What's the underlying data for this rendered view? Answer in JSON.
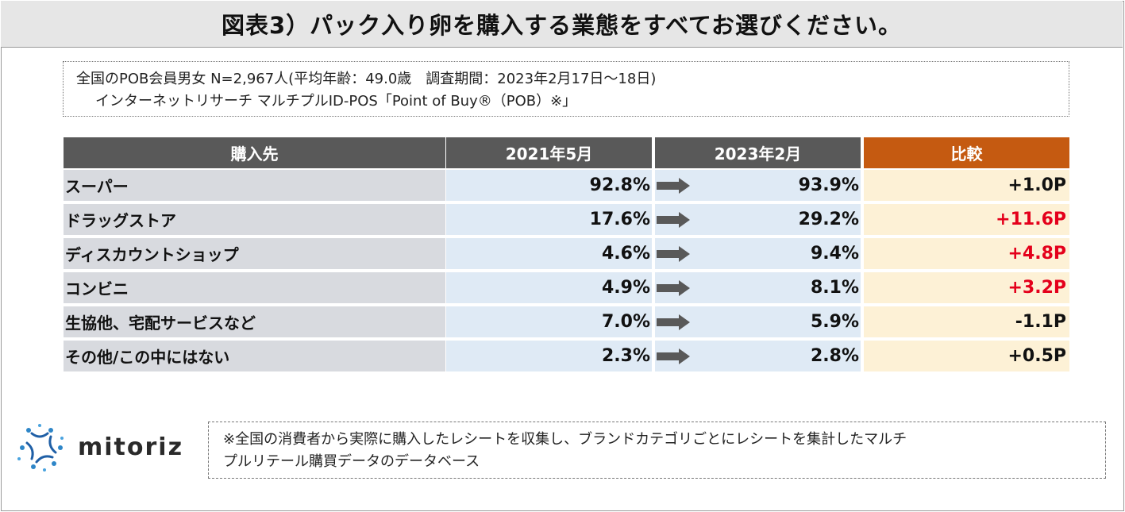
{
  "title": "図表3）パック入り卵を購入する業態をすべてお選びください。",
  "survey": {
    "line1": "全国のPOB会員男女 N=2,967人(平均年齢：49.0歳　調査期間：2023年2月17日～18日)",
    "line2": "インターネットリサーチ マルチプルID-POS「Point of Buy®（POB）※」"
  },
  "table": {
    "headers": [
      "購入先",
      "2021年5月",
      "2023年2月",
      "比較"
    ],
    "rows": [
      {
        "label": "スーパー",
        "y2021": "92.8%",
        "y2023": "93.9%",
        "diff": "+1.0P"
      },
      {
        "label": "ドラッグストア",
        "y2021": "17.6%",
        "y2023": "29.2%",
        "diff": "+11.6P"
      },
      {
        "label": "ディスカウントショップ",
        "y2021": "4.6%",
        "y2023": "9.4%",
        "diff": "+4.8P"
      },
      {
        "label": "コンビニ",
        "y2021": "4.9%",
        "y2023": "8.1%",
        "diff": "+3.2P"
      },
      {
        "label": "生協他、宅配サービスなど",
        "y2021": "7.0%",
        "y2023": "5.9%",
        "diff": "-1.1P"
      },
      {
        "label": "その他/この中にはない",
        "y2021": "2.3%",
        "y2023": "2.8%",
        "diff": "+0.5P"
      }
    ]
  },
  "colors": {
    "accent_header": "#c55a11",
    "increase_text": "#e4001b",
    "arrow": "#595959"
  },
  "logo": {
    "text": "mitoriz"
  },
  "note": {
    "line1": "※全国の消費者から実際に購入したレシートを収集し、ブランドカテゴリごとにレシートを集計したマルチ",
    "line2": "プルリテール購買データのデータベース"
  }
}
